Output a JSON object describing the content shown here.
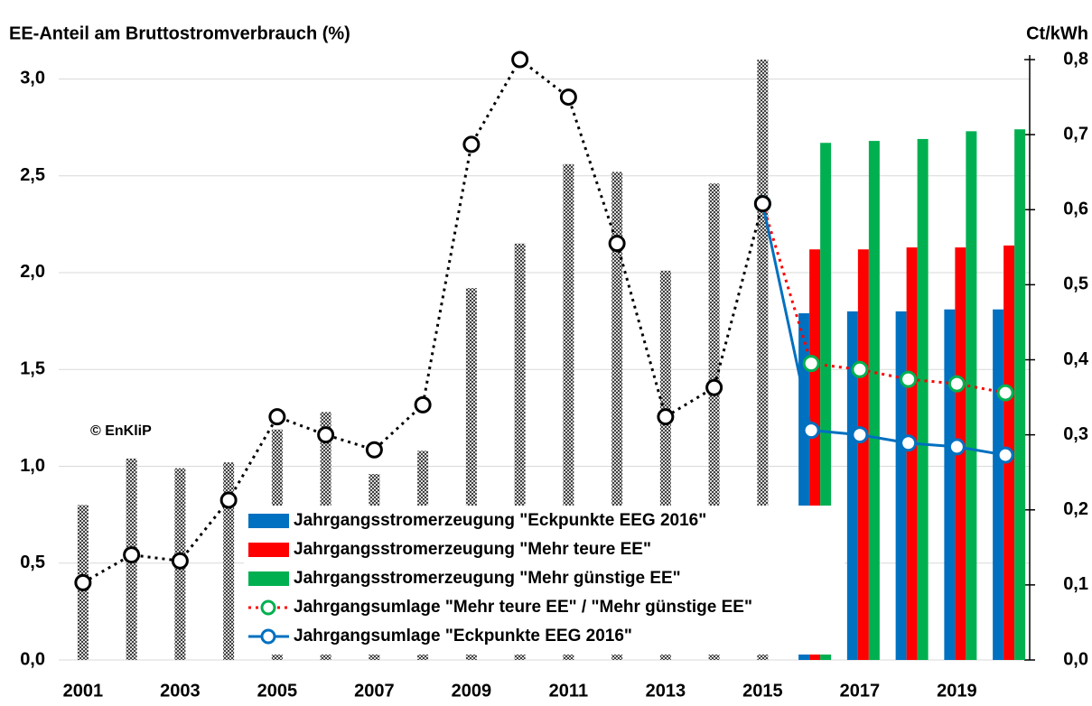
{
  "chart_data": {
    "type": "bar",
    "y_label": "EE-Anteil am  Bruttostromverbrauch (%)",
    "y2_label": "Ct/kWh",
    "annotation": "© EnKliP",
    "categories": [
      2001,
      null,
      2003,
      null,
      2005,
      null,
      2007,
      null,
      2009,
      null,
      2011,
      null,
      2013,
      null,
      2015,
      null,
      2017,
      null,
      2019,
      null
    ],
    "ylim": [
      0,
      3.1
    ],
    "yticks": [
      {
        "value": 0,
        "label": "0,0"
      },
      {
        "value": 0.5,
        "label": "0,5"
      },
      {
        "value": 1,
        "label": "1,0"
      },
      {
        "value": 1.5,
        "label": "1,5"
      },
      {
        "value": 2,
        "label": "2,0"
      },
      {
        "value": 2.5,
        "label": "2,5"
      },
      {
        "value": 3,
        "label": "3,0"
      }
    ],
    "y2lim": [
      0,
      0.8
    ],
    "y2ticks": [
      {
        "value": 0,
        "label": "0,0"
      },
      {
        "value": 0.1,
        "label": "0,1"
      },
      {
        "value": 0.2,
        "label": "0,2"
      },
      {
        "value": 0.3,
        "label": "0,3"
      },
      {
        "value": 0.4,
        "label": "0,4"
      },
      {
        "value": 0.5,
        "label": "0,5"
      },
      {
        "value": 0.6,
        "label": "0,6"
      },
      {
        "value": 0.7,
        "label": "0,7"
      },
      {
        "value": 0.8,
        "label": "0,8"
      }
    ],
    "grid": true,
    "series": [
      {
        "type": "bar",
        "color": "#808080",
        "pattern": true,
        "values": [
          0.8,
          1.04,
          0.99,
          1.02,
          1.19,
          1.28,
          0.96,
          1.08,
          1.92,
          2.15,
          2.56,
          2.52,
          2.01,
          2.46,
          3.1,
          null,
          null,
          null,
          null,
          null
        ]
      },
      {
        "type": "bar",
        "name": "Jahrgangsstromerzeugung \"Eckpunkte EEG 2016\"",
        "color": "#0070c0",
        "values": [
          null,
          null,
          null,
          null,
          null,
          null,
          null,
          null,
          null,
          null,
          null,
          null,
          null,
          null,
          null,
          1.79,
          1.8,
          1.8,
          1.81,
          1.81
        ]
      },
      {
        "type": "bar",
        "name": "Jahrgangsstromerzeugung \"Mehr teure EE\"",
        "color": "#ff0000",
        "values": [
          null,
          null,
          null,
          null,
          null,
          null,
          null,
          null,
          null,
          null,
          null,
          null,
          null,
          null,
          null,
          2.12,
          2.12,
          2.13,
          2.13,
          2.14
        ]
      },
      {
        "type": "bar",
        "name": "Jahrgangsstromerzeugung \"Mehr günstige EE\"",
        "color": "#00b050",
        "values": [
          null,
          null,
          null,
          null,
          null,
          null,
          null,
          null,
          null,
          null,
          null,
          null,
          null,
          null,
          null,
          2.67,
          2.68,
          2.69,
          2.73,
          2.74
        ]
      },
      {
        "type": "line",
        "axis": "y2",
        "name": "Jahrgangsumlage \"Mehr teure EE\" / \"Mehr günstige EE\"",
        "color": "#ff0000",
        "marker_color": "#00b050",
        "line_style": "dotted",
        "values": [
          null,
          null,
          null,
          null,
          null,
          null,
          null,
          null,
          null,
          null,
          null,
          null,
          null,
          null,
          0.608,
          0.395,
          0.387,
          0.374,
          0.368,
          0.356
        ]
      },
      {
        "type": "line",
        "axis": "y2",
        "name": "Jahrgangsumlage \"Eckpunkte EEG 2016\"",
        "color": "#0070c0",
        "marker_color": "#0070c0",
        "line_style": "solid",
        "values": [
          null,
          null,
          null,
          null,
          null,
          null,
          null,
          null,
          null,
          null,
          null,
          null,
          null,
          null,
          0.608,
          0.306,
          0.3,
          0.289,
          0.284,
          0.273
        ]
      },
      {
        "type": "line",
        "axis": "y2",
        "color": "#000000",
        "marker_color": "#000000",
        "line_style": "dotted",
        "values": [
          0.103,
          0.14,
          0.132,
          0.213,
          0.324,
          0.3,
          0.28,
          0.34,
          0.687,
          0.8,
          0.75,
          0.555,
          0.324,
          0.363,
          0.608,
          null,
          null,
          null,
          null,
          null
        ]
      }
    ]
  }
}
